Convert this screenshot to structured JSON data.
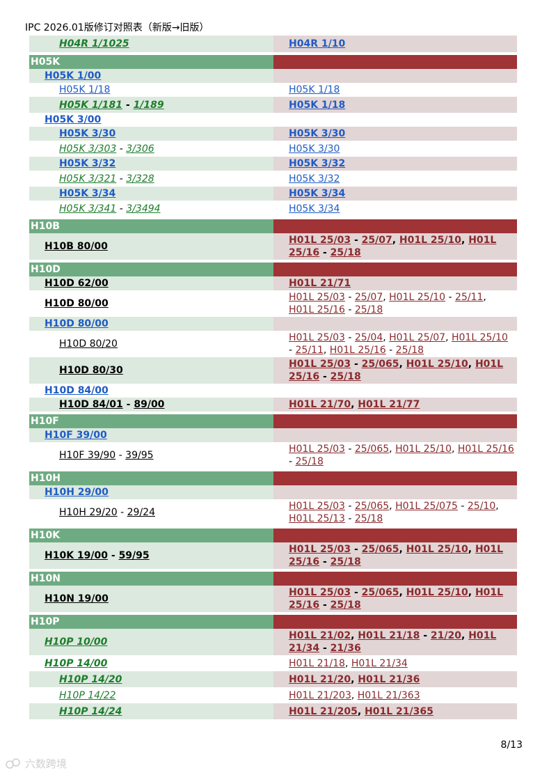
{
  "header": {
    "title": "IPC 2026.01版修订对照表（新版→旧版）"
  },
  "footer": {
    "page": "8/13",
    "watermark": "六数跨境"
  },
  "rows": [
    {
      "h": 24,
      "type": "b",
      "ind": 2,
      "left": [
        {
          "t": "H04R 1/1025",
          "s": "gr"
        }
      ],
      "right": [
        {
          "t": "H04R 1/10",
          "s": "lk"
        }
      ]
    },
    {
      "h": 4,
      "type": "gap"
    },
    {
      "h": 20,
      "type": "sec",
      "left": [
        {
          "t": "H05K"
        }
      ]
    },
    {
      "h": 20,
      "type": "b",
      "ind": 1,
      "left": [
        {
          "t": "H05K 1/00",
          "s": "lk b"
        }
      ],
      "right": []
    },
    {
      "h": 20,
      "type": "a",
      "ind": 2,
      "left": [
        {
          "t": "H05K 1/18",
          "s": "lk"
        }
      ],
      "right": [
        {
          "t": "H05K 1/18",
          "s": "lk"
        }
      ]
    },
    {
      "h": 23,
      "type": "b",
      "ind": 2,
      "left": [
        {
          "t": "H05K 1/181",
          "s": "gr"
        },
        {
          "t": " - ",
          "s": "sep"
        },
        {
          "t": "1/189",
          "s": "gr"
        }
      ],
      "right": [
        {
          "t": "H05K 1/18",
          "s": "lk"
        }
      ]
    },
    {
      "h": 20,
      "type": "a",
      "ind": 1,
      "left": [
        {
          "t": "H05K 3/00",
          "s": "lk b"
        }
      ],
      "right": []
    },
    {
      "h": 20,
      "type": "b",
      "ind": 2,
      "left": [
        {
          "t": "H05K 3/30",
          "s": "lk"
        }
      ],
      "right": [
        {
          "t": "H05K 3/30",
          "s": "lk"
        }
      ]
    },
    {
      "h": 23,
      "type": "a",
      "ind": 2,
      "left": [
        {
          "t": "H05K 3/303",
          "s": "gr"
        },
        {
          "t": " - ",
          "s": "sep"
        },
        {
          "t": "3/306",
          "s": "gr"
        }
      ],
      "right": [
        {
          "t": "H05K 3/30",
          "s": "lk"
        }
      ]
    },
    {
      "h": 20,
      "type": "b",
      "ind": 2,
      "left": [
        {
          "t": "H05K 3/32",
          "s": "lk"
        }
      ],
      "right": [
        {
          "t": "H05K 3/32",
          "s": "lk"
        }
      ]
    },
    {
      "h": 23,
      "type": "a",
      "ind": 2,
      "left": [
        {
          "t": "H05K 3/321",
          "s": "gr"
        },
        {
          "t": " - ",
          "s": "sep"
        },
        {
          "t": "3/328",
          "s": "gr"
        }
      ],
      "right": [
        {
          "t": "H05K 3/32",
          "s": "lk"
        }
      ]
    },
    {
      "h": 20,
      "type": "b",
      "ind": 2,
      "left": [
        {
          "t": "H05K 3/34",
          "s": "lk"
        }
      ],
      "right": [
        {
          "t": "H05K 3/34",
          "s": "lk"
        }
      ]
    },
    {
      "h": 23,
      "type": "a",
      "ind": 2,
      "left": [
        {
          "t": "H05K 3/341",
          "s": "gr"
        },
        {
          "t": " - ",
          "s": "sep"
        },
        {
          "t": "3/3494",
          "s": "gr"
        }
      ],
      "right": [
        {
          "t": "H05K 3/34",
          "s": "lk"
        }
      ]
    },
    {
      "h": 4,
      "type": "gap"
    },
    {
      "h": 20,
      "type": "sec",
      "left": [
        {
          "t": "H10B"
        }
      ]
    },
    {
      "h": 38,
      "type": "b",
      "ind": 1,
      "left": [
        {
          "t": "H10B 80/00",
          "s": "bk b"
        }
      ],
      "right": [
        {
          "t": "H01L 25/03",
          "s": "rd"
        },
        {
          "t": " - ",
          "s": "sep"
        },
        {
          "t": "25/07",
          "s": "rd"
        },
        {
          "t": ", ",
          "s": "sep"
        },
        {
          "t": "H01L 25/10",
          "s": "rd"
        },
        {
          "t": ", ",
          "s": "sep"
        },
        {
          "t": "H01L 25/16",
          "s": "rd"
        },
        {
          "t": " - ",
          "s": "sep"
        },
        {
          "t": "25/18",
          "s": "rd"
        }
      ]
    },
    {
      "h": 4,
      "type": "gap"
    },
    {
      "h": 20,
      "type": "sec",
      "left": [
        {
          "t": "H10D"
        }
      ]
    },
    {
      "h": 20,
      "type": "b",
      "ind": 1,
      "left": [
        {
          "t": "H10D 62/00",
          "s": "bk b"
        }
      ],
      "right": [
        {
          "t": "H01L 21/71",
          "s": "rd"
        }
      ]
    },
    {
      "h": 38,
      "type": "a",
      "ind": 1,
      "left": [
        {
          "t": "H10D 80/00",
          "s": "bk b"
        }
      ],
      "right": [
        {
          "t": "H01L 25/03",
          "s": "rd"
        },
        {
          "t": " - ",
          "s": "sep"
        },
        {
          "t": "25/07",
          "s": "rd"
        },
        {
          "t": ", ",
          "s": "sep"
        },
        {
          "t": "H01L 25/10",
          "s": "rd"
        },
        {
          "t": " - ",
          "s": "sep"
        },
        {
          "t": "25/11",
          "s": "rd"
        },
        {
          "t": ", ",
          "s": "sep"
        },
        {
          "t": "H01L 25/16",
          "s": "rd"
        },
        {
          "t": " - ",
          "s": "sep"
        },
        {
          "t": "25/18",
          "s": "rd"
        }
      ]
    },
    {
      "h": 20,
      "type": "b",
      "ind": 1,
      "left": [
        {
          "t": "H10D 80/00",
          "s": "lk b"
        }
      ],
      "right": []
    },
    {
      "h": 38,
      "type": "a",
      "ind": 2,
      "left": [
        {
          "t": "H10D 80/20",
          "s": "bk"
        }
      ],
      "right": [
        {
          "t": "H01L 25/03",
          "s": "rd"
        },
        {
          "t": " - ",
          "s": "sep"
        },
        {
          "t": "25/04",
          "s": "rd"
        },
        {
          "t": ", ",
          "s": "sep"
        },
        {
          "t": "H01L 25/07",
          "s": "rd"
        },
        {
          "t": ", ",
          "s": "sep"
        },
        {
          "t": "H01L 25/10",
          "s": "rd"
        },
        {
          "t": " - ",
          "s": "sep"
        },
        {
          "t": "25/11",
          "s": "rd"
        },
        {
          "t": ", ",
          "s": "sep"
        },
        {
          "t": "H01L 25/16",
          "s": "rd"
        },
        {
          "t": " - ",
          "s": "sep"
        },
        {
          "t": "25/18",
          "s": "rd"
        }
      ]
    },
    {
      "h": 38,
      "type": "b",
      "ind": 2,
      "left": [
        {
          "t": "H10D 80/30",
          "s": "bk"
        }
      ],
      "right": [
        {
          "t": "H01L 25/03",
          "s": "rd"
        },
        {
          "t": " - ",
          "s": "sep"
        },
        {
          "t": "25/065",
          "s": "rd"
        },
        {
          "t": ", ",
          "s": "sep"
        },
        {
          "t": "H01L 25/10",
          "s": "rd"
        },
        {
          "t": ", ",
          "s": "sep"
        },
        {
          "t": "H01L 25/16",
          "s": "rd"
        },
        {
          "t": " - ",
          "s": "sep"
        },
        {
          "t": "25/18",
          "s": "rd"
        }
      ]
    },
    {
      "h": 20,
      "type": "a",
      "ind": 1,
      "left": [
        {
          "t": "H10D 84/00",
          "s": "lk b"
        }
      ],
      "right": []
    },
    {
      "h": 20,
      "type": "b",
      "ind": 2,
      "left": [
        {
          "t": "H10D 84/01",
          "s": "bk"
        },
        {
          "t": " - ",
          "s": "sep"
        },
        {
          "t": "89/00",
          "s": "bk b"
        }
      ],
      "right": [
        {
          "t": "H01L 21/70",
          "s": "rd"
        },
        {
          "t": ", ",
          "s": "sep"
        },
        {
          "t": "H01L 21/77",
          "s": "rd"
        }
      ]
    },
    {
      "h": 4,
      "type": "gap"
    },
    {
      "h": 20,
      "type": "sec",
      "left": [
        {
          "t": "H10F"
        }
      ]
    },
    {
      "h": 20,
      "type": "b",
      "ind": 1,
      "left": [
        {
          "t": "H10F 39/00",
          "s": "lk b"
        }
      ],
      "right": []
    },
    {
      "h": 38,
      "type": "a",
      "ind": 2,
      "left": [
        {
          "t": "H10F 39/90",
          "s": "bk"
        },
        {
          "t": " - ",
          "s": "sep"
        },
        {
          "t": "39/95",
          "s": "bk"
        }
      ],
      "right": [
        {
          "t": "H01L 25/03",
          "s": "rd"
        },
        {
          "t": " - ",
          "s": "sep"
        },
        {
          "t": "25/065",
          "s": "rd"
        },
        {
          "t": ", ",
          "s": "sep"
        },
        {
          "t": "H01L 25/10",
          "s": "rd"
        },
        {
          "t": ", ",
          "s": "sep"
        },
        {
          "t": "H01L 25/16",
          "s": "rd"
        },
        {
          "t": " - ",
          "s": "sep"
        },
        {
          "t": "25/18",
          "s": "rd"
        }
      ]
    },
    {
      "h": 4,
      "type": "gap"
    },
    {
      "h": 20,
      "type": "sec",
      "left": [
        {
          "t": "H10H"
        }
      ]
    },
    {
      "h": 20,
      "type": "b",
      "ind": 1,
      "left": [
        {
          "t": "H10H 29/00",
          "s": "lk b"
        }
      ],
      "right": []
    },
    {
      "h": 38,
      "type": "a",
      "ind": 2,
      "left": [
        {
          "t": "H10H 29/20",
          "s": "bk"
        },
        {
          "t": " - ",
          "s": "sep"
        },
        {
          "t": "29/24",
          "s": "bk"
        }
      ],
      "right": [
        {
          "t": "H01L 25/03",
          "s": "rd"
        },
        {
          "t": " - ",
          "s": "sep"
        },
        {
          "t": "25/065",
          "s": "rd"
        },
        {
          "t": ", ",
          "s": "sep"
        },
        {
          "t": "H01L 25/075",
          "s": "rd"
        },
        {
          "t": " - ",
          "s": "sep"
        },
        {
          "t": "25/10",
          "s": "rd"
        },
        {
          "t": ", ",
          "s": "sep"
        },
        {
          "t": "H01L 25/13",
          "s": "rd"
        },
        {
          "t": " - ",
          "s": "sep"
        },
        {
          "t": "25/18",
          "s": "rd"
        }
      ]
    },
    {
      "h": 4,
      "type": "gap"
    },
    {
      "h": 20,
      "type": "sec",
      "left": [
        {
          "t": "H10K"
        }
      ]
    },
    {
      "h": 38,
      "type": "b",
      "ind": 1,
      "left": [
        {
          "t": "H10K 19/00",
          "s": "bk b"
        },
        {
          "t": " - ",
          "s": "sep"
        },
        {
          "t": "59/95",
          "s": "bk"
        }
      ],
      "right": [
        {
          "t": "H01L 25/03",
          "s": "rd"
        },
        {
          "t": " - ",
          "s": "sep"
        },
        {
          "t": "25/065",
          "s": "rd"
        },
        {
          "t": ", ",
          "s": "sep"
        },
        {
          "t": "H01L 25/10",
          "s": "rd"
        },
        {
          "t": ", ",
          "s": "sep"
        },
        {
          "t": "H01L 25/16",
          "s": "rd"
        },
        {
          "t": " - ",
          "s": "sep"
        },
        {
          "t": "25/18",
          "s": "rd"
        }
      ]
    },
    {
      "h": 4,
      "type": "gap"
    },
    {
      "h": 20,
      "type": "sec",
      "left": [
        {
          "t": "H10N"
        }
      ]
    },
    {
      "h": 38,
      "type": "b",
      "ind": 1,
      "left": [
        {
          "t": "H10N 19/00",
          "s": "bk b"
        }
      ],
      "right": [
        {
          "t": "H01L 25/03",
          "s": "rd"
        },
        {
          "t": " - ",
          "s": "sep"
        },
        {
          "t": "25/065",
          "s": "rd"
        },
        {
          "t": ", ",
          "s": "sep"
        },
        {
          "t": "H01L 25/10",
          "s": "rd"
        },
        {
          "t": ", ",
          "s": "sep"
        },
        {
          "t": "H01L 25/16",
          "s": "rd"
        },
        {
          "t": " - ",
          "s": "sep"
        },
        {
          "t": "25/18",
          "s": "rd"
        }
      ]
    },
    {
      "h": 4,
      "type": "gap"
    },
    {
      "h": 20,
      "type": "sec",
      "left": [
        {
          "t": "H10P"
        }
      ]
    },
    {
      "h": 38,
      "type": "b",
      "ind": 1,
      "left": [
        {
          "t": "H10P 10/00",
          "s": "gr b"
        }
      ],
      "right": [
        {
          "t": "H01L 21/02",
          "s": "rd"
        },
        {
          "t": ", ",
          "s": "sep"
        },
        {
          "t": "H01L 21/18",
          "s": "rd"
        },
        {
          "t": " - ",
          "s": "sep"
        },
        {
          "t": "21/20",
          "s": "rd"
        },
        {
          "t": ", ",
          "s": "sep"
        },
        {
          "t": "H01L 21/34",
          "s": "rd"
        },
        {
          "t": " - ",
          "s": "sep"
        },
        {
          "t": "21/36",
          "s": "rd"
        }
      ]
    },
    {
      "h": 23,
      "type": "a",
      "ind": 1,
      "left": [
        {
          "t": "H10P 14/00",
          "s": "gr b"
        }
      ],
      "right": [
        {
          "t": "H01L 21/18",
          "s": "rd"
        },
        {
          "t": ", ",
          "s": "sep"
        },
        {
          "t": "H01L 21/34",
          "s": "rd"
        }
      ]
    },
    {
      "h": 23,
      "type": "b",
      "ind": 2,
      "left": [
        {
          "t": "H10P 14/20",
          "s": "gr"
        }
      ],
      "right": [
        {
          "t": "H01L 21/20",
          "s": "rd"
        },
        {
          "t": ", ",
          "s": "sep"
        },
        {
          "t": "H01L 21/36",
          "s": "rd"
        }
      ]
    },
    {
      "h": 23,
      "type": "a",
      "ind": 2,
      "left": [
        {
          "t": "H10P 14/22",
          "s": "gr"
        }
      ],
      "right": [
        {
          "t": "H01L 21/203",
          "s": "rd"
        },
        {
          "t": ", ",
          "s": "sep"
        },
        {
          "t": "H01L 21/363",
          "s": "rd"
        }
      ]
    },
    {
      "h": 23,
      "type": "b",
      "ind": 2,
      "left": [
        {
          "t": "H10P 14/24",
          "s": "gr"
        }
      ],
      "right": [
        {
          "t": "H01L 21/205",
          "s": "rd"
        },
        {
          "t": ", ",
          "s": "sep"
        },
        {
          "t": "H01L 21/365",
          "s": "rd"
        }
      ]
    }
  ]
}
